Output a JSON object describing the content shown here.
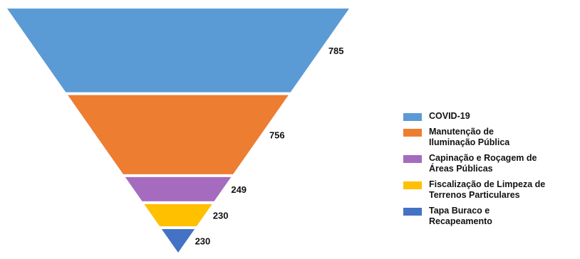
{
  "chart_data": {
    "type": "funnel",
    "categories": [
      "COVID-19",
      "Manutenção de\nIluminação Pública",
      "Capinação e Roçagem de\nÁreas Públicas",
      "Fiscalização de Limpeza de\nTerrenos Particulares",
      "Tapa Buraco e\nRecapeamento"
    ],
    "values": [
      785,
      756,
      249,
      230,
      230
    ],
    "value_labels": [
      "785",
      "756",
      "249",
      "230",
      "230"
    ],
    "colors": [
      "#5b9bd5",
      "#ed7d31",
      "#a56bbf",
      "#ffc000",
      "#4472c4"
    ],
    "legend_position": "right"
  }
}
